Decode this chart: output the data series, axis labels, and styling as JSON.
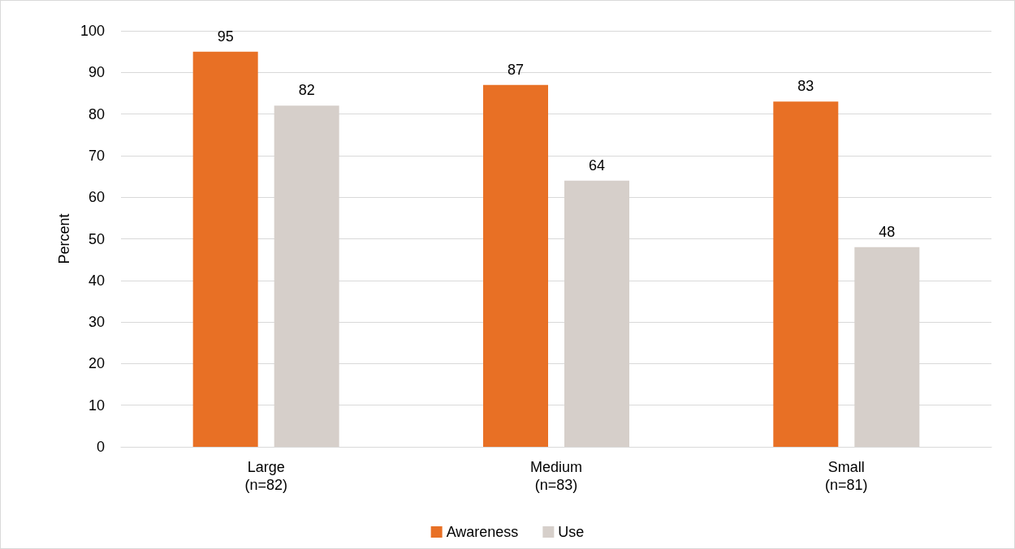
{
  "chart_data": {
    "type": "bar",
    "ylabel": "Percent",
    "categories": [
      "Large\n(n=82)",
      "Medium\n(n=83)",
      "Small\n(n=81)"
    ],
    "series": [
      {
        "name": "Awareness",
        "color": "#e87025",
        "values": [
          95,
          87,
          83
        ]
      },
      {
        "name": "Use",
        "color": "#d6cfca",
        "values": [
          82,
          64,
          48
        ]
      }
    ],
    "ylim": [
      0,
      100
    ],
    "yticks": [
      0,
      10,
      20,
      30,
      40,
      50,
      60,
      70,
      80,
      90,
      100
    ],
    "grid": "y",
    "legend": "bottom",
    "data_labels": true
  }
}
